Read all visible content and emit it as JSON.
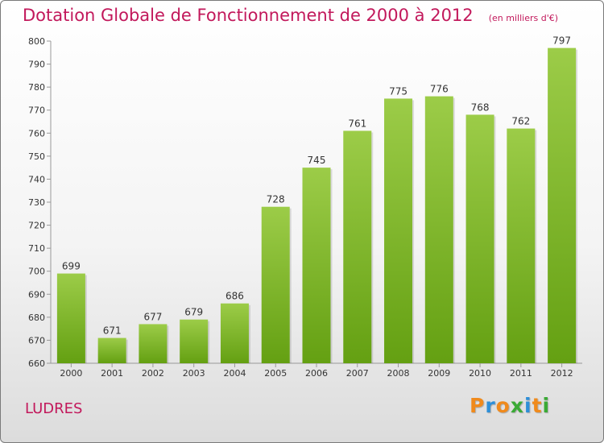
{
  "chart_data": {
    "type": "bar",
    "title": "Dotation Globale de Fonctionnement de 2000 à 2012",
    "unit": "(en milliers d'€)",
    "categories": [
      "2000",
      "2001",
      "2002",
      "2003",
      "2004",
      "2005",
      "2006",
      "2007",
      "2008",
      "2009",
      "2010",
      "2011",
      "2012"
    ],
    "values": [
      699,
      671,
      677,
      679,
      686,
      728,
      745,
      761,
      775,
      776,
      768,
      762,
      797
    ],
    "ylim": [
      660,
      800
    ],
    "yticks": [
      660,
      670,
      680,
      690,
      700,
      710,
      720,
      730,
      740,
      750,
      760,
      770,
      780,
      790,
      800
    ],
    "grid": false,
    "bar_color_top": "#9ccc48",
    "bar_color_bottom": "#64a012",
    "title_color": "#c2185b"
  },
  "commune": "LUDRES",
  "brand": {
    "letters": [
      "P",
      "r",
      "o",
      "x",
      "i",
      "t",
      "i"
    ],
    "colors": [
      "#f08a1c",
      "#2e8fd8",
      "#f08a1c",
      "#3aaa35",
      "#2e8fd8",
      "#f08a1c",
      "#3aaa35"
    ]
  }
}
